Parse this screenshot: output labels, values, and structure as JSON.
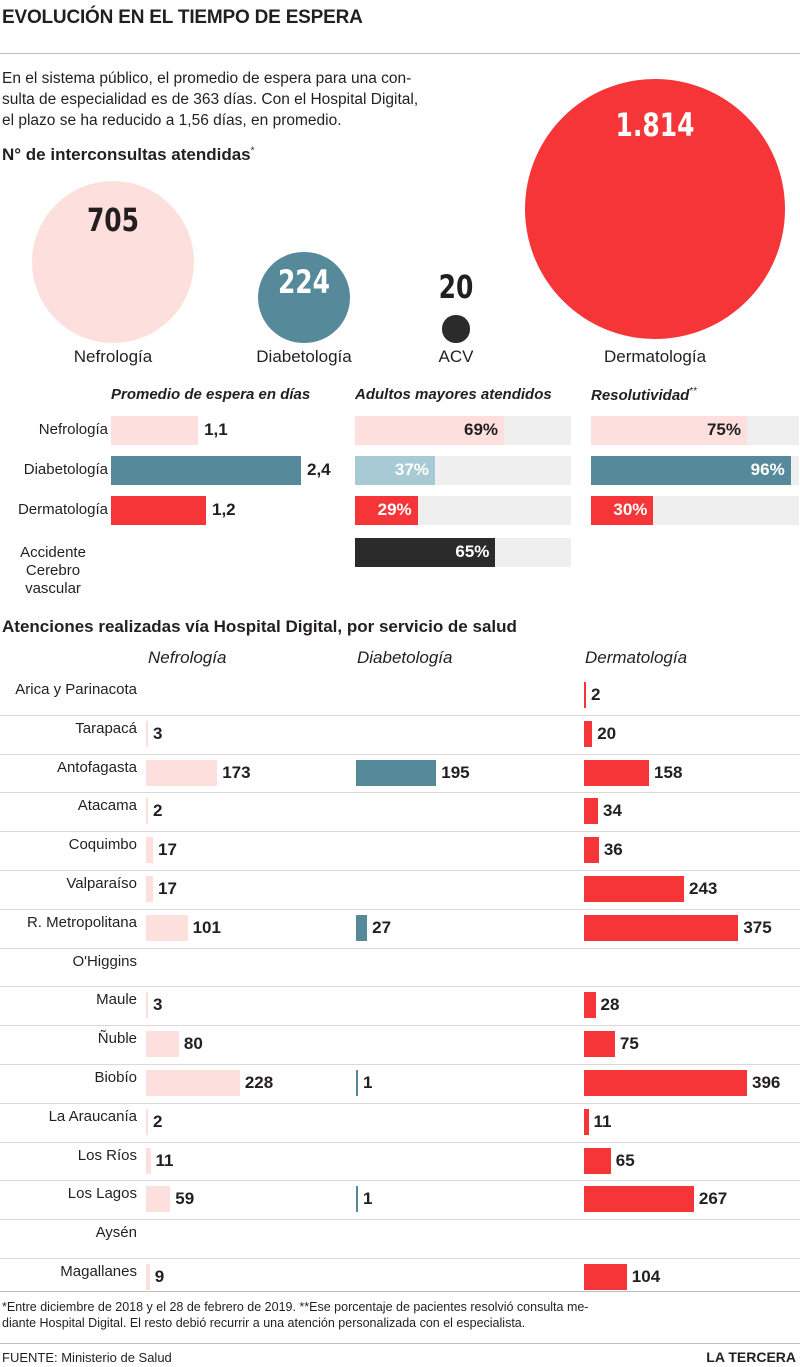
{
  "title": "EVOLUCIÓN EN EL TIEMPO DE ESPERA",
  "intro_lines": [
    "En el sistema público, el promedio de espera para una con-",
    "sulta de especialidad es de 363 días. Con el Hospital Digital,",
    "el plazo se ha reducido a 1,56 días, en promedio."
  ],
  "subtitle1": "N° de interconsultas atendidas",
  "subtitle1_mark": "*",
  "colors": {
    "nefrologia": "#fde0dd",
    "diabetologia": "#568a9a",
    "diabetologia_light": "#a7cad4",
    "dermatologia": "#f63538",
    "acv": "#2b2b2b",
    "track": "#efefef"
  },
  "chart_data": [
    {
      "type": "bubble",
      "title": "N° de interconsultas atendidas",
      "categories": [
        "Nefrología",
        "Diabetología",
        "ACV",
        "Dermatología"
      ],
      "values": [
        705,
        224,
        20,
        1814
      ],
      "value_labels": [
        "705",
        "224",
        "20",
        "1.814"
      ]
    },
    {
      "type": "bar",
      "title": "Promedio de espera en días",
      "categories": [
        "Nefrología",
        "Diabetología",
        "Dermatología"
      ],
      "values": [
        1.1,
        2.4,
        1.2
      ],
      "value_labels": [
        "1,1",
        "2,4",
        "1,2"
      ]
    },
    {
      "type": "bar",
      "title": "Adultos mayores atendidos",
      "categories": [
        "Nefrología",
        "Diabetología",
        "Dermatología",
        "Accidente Cerebro vascular"
      ],
      "values": [
        69,
        37,
        29,
        65
      ],
      "value_labels": [
        "69%",
        "37%",
        "29%",
        "65%"
      ],
      "ylim": [
        0,
        100
      ]
    },
    {
      "type": "bar",
      "title": "Resolutividad",
      "title_mark": "**",
      "categories": [
        "Nefrología",
        "Diabetología",
        "Dermatología"
      ],
      "values": [
        75,
        96,
        30
      ],
      "value_labels": [
        "75%",
        "96%",
        "30%"
      ],
      "ylim": [
        0,
        100
      ]
    },
    {
      "type": "bar",
      "title": "Atenciones realizadas vía Hospital Digital, por servicio de salud",
      "categories": [
        "Arica y Parinacota",
        "Tarapacá",
        "Antofagasta",
        "Atacama",
        "Coquimbo",
        "Valparaíso",
        "R. Metropolitana",
        "O'Higgins",
        "Maule",
        "Ñuble",
        "Biobío",
        "La Araucanía",
        "Los Ríos",
        "Los Lagos",
        "Aysén",
        "Magallanes"
      ],
      "series": [
        {
          "name": "Nefrología",
          "values": [
            null,
            3,
            173,
            2,
            17,
            17,
            101,
            null,
            3,
            80,
            228,
            2,
            11,
            59,
            null,
            9
          ]
        },
        {
          "name": "Diabetología",
          "values": [
            null,
            null,
            195,
            null,
            null,
            null,
            27,
            null,
            null,
            null,
            1,
            null,
            null,
            1,
            null,
            null
          ]
        },
        {
          "name": "Dermatología",
          "values": [
            2,
            20,
            158,
            34,
            36,
            243,
            375,
            null,
            28,
            75,
            396,
            11,
            65,
            267,
            null,
            104
          ]
        }
      ]
    }
  ],
  "row_labels": [
    "Nefrología",
    "Diabetología",
    "Dermatología"
  ],
  "acv_row_label": [
    "Accidente",
    "Cerebro",
    "vascular"
  ],
  "footnote_lines": [
    "*Entre diciembre de 2018 y el 28 de febrero de 2019.  **Ese porcentaje de pacientes resolvió consulta me-",
    "diante Hospital Digital. El resto debió recurrir a una atención personalizada con el especialista."
  ],
  "source": "FUENTE: Ministerio de Salud",
  "brand": "LA TERCERA"
}
